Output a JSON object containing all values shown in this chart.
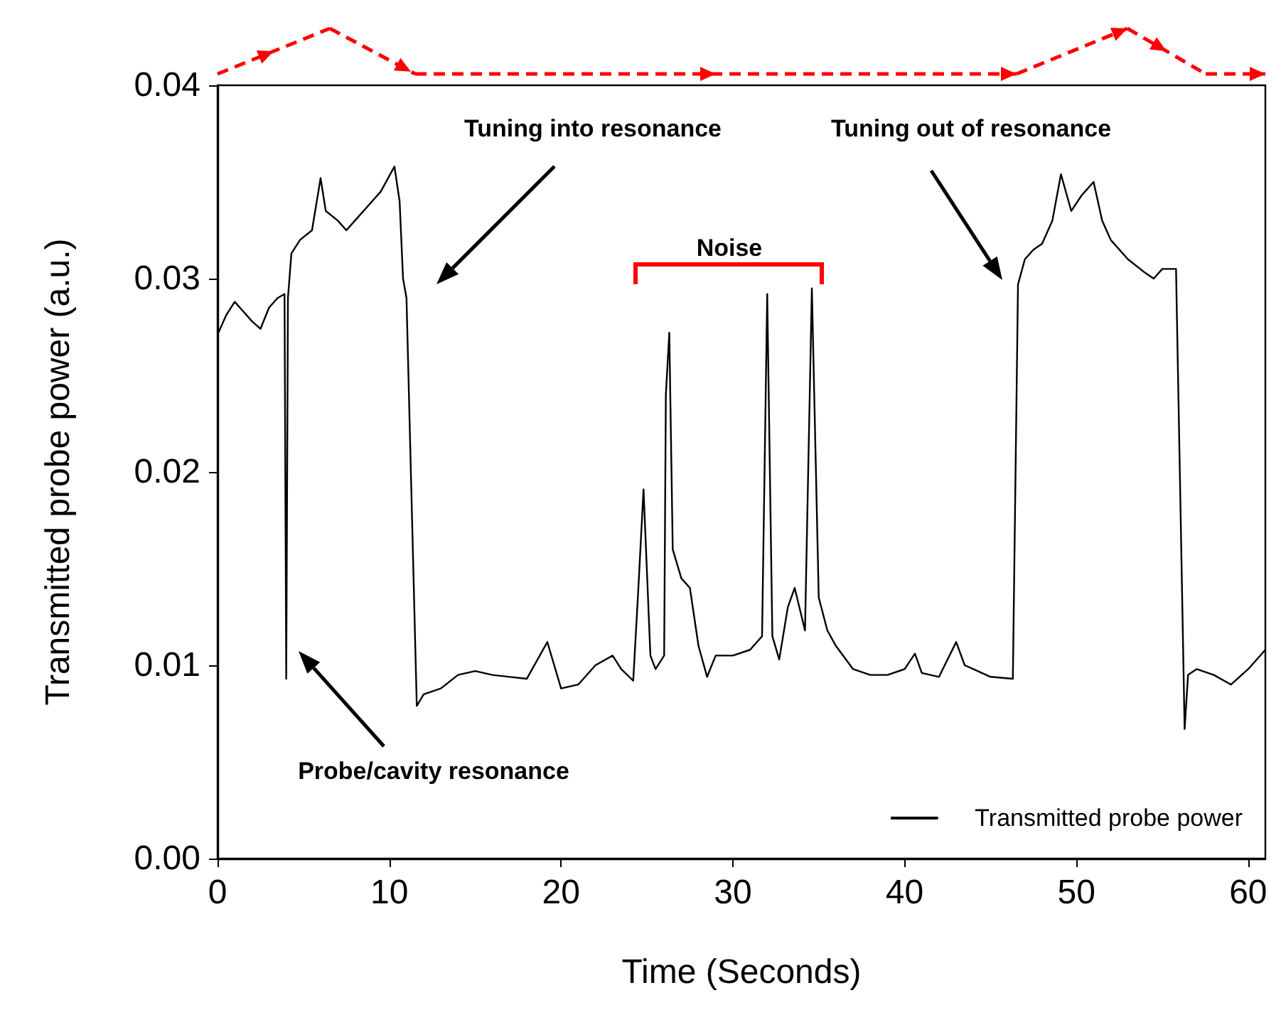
{
  "chart_data": {
    "type": "line",
    "xlabel": "Time (Seconds)",
    "ylabel": "Transmitted probe power (a.u.)",
    "xlim": [
      0,
      61
    ],
    "xticks": [
      0,
      10,
      20,
      30,
      40,
      50,
      60
    ],
    "ylim": [
      0,
      0.04
    ],
    "yticks": [
      {
        "value": 0,
        "label": "0.00"
      },
      {
        "value": 0.01,
        "label": "0.01"
      },
      {
        "value": 0.02,
        "label": "0.02"
      },
      {
        "value": 0.03,
        "label": "0.03"
      },
      {
        "value": 0.04,
        "label": "0.04"
      }
    ],
    "grid": false,
    "legend": "bottom right",
    "marker": "none",
    "line_style": "solid",
    "x": [
      0,
      0.5,
      1,
      1.5,
      2,
      2.5,
      3,
      3.5,
      3.9,
      4.0,
      4.1,
      4.3,
      4.8,
      5.5,
      6.0,
      6.3,
      7,
      7.5,
      8,
      9,
      9.5,
      10.3,
      10.6,
      10.8,
      11.0,
      11.6,
      12,
      13,
      14,
      15,
      16,
      17,
      18,
      19.2,
      20,
      21,
      22,
      23,
      23.5,
      24.2,
      24.5,
      24.8,
      25.2,
      25.5,
      26.0,
      26.1,
      26.3,
      26.5,
      27,
      27.5,
      28.0,
      28.5,
      29.0,
      30,
      31,
      31.7,
      32.0,
      32.3,
      32.7,
      33.2,
      33.6,
      34.2,
      34.6,
      35.0,
      35.5,
      36,
      37,
      38,
      39,
      40,
      40.6,
      41,
      42,
      43,
      43.5,
      44,
      45,
      46.3,
      46.6,
      47,
      47.5,
      48,
      48.6,
      49.1,
      49.7,
      50.3,
      51.0,
      51.5,
      52,
      53,
      54,
      54.5,
      55,
      55.8,
      56.3,
      56.5,
      57,
      58,
      59,
      60,
      61
    ],
    "series": [
      {
        "name": "Transmitted probe power",
        "color": "#000000",
        "values": [
          0.0271,
          0.0281,
          0.0288,
          0.0283,
          0.0278,
          0.0274,
          0.0285,
          0.029,
          0.0292,
          0.0093,
          0.029,
          0.0313,
          0.032,
          0.0325,
          0.0352,
          0.0335,
          0.033,
          0.0325,
          0.033,
          0.034,
          0.0345,
          0.0358,
          0.034,
          0.03,
          0.029,
          0.0079,
          0.0085,
          0.0088,
          0.0095,
          0.0097,
          0.0095,
          0.0094,
          0.0093,
          0.0112,
          0.0088,
          0.009,
          0.01,
          0.0105,
          0.0098,
          0.0092,
          0.014,
          0.0191,
          0.0105,
          0.0098,
          0.0105,
          0.024,
          0.0272,
          0.016,
          0.0145,
          0.014,
          0.011,
          0.0094,
          0.0105,
          0.0105,
          0.0108,
          0.0115,
          0.0292,
          0.0115,
          0.0103,
          0.013,
          0.014,
          0.0118,
          0.0295,
          0.0135,
          0.0118,
          0.011,
          0.0098,
          0.0095,
          0.0095,
          0.0098,
          0.0106,
          0.0096,
          0.0094,
          0.0112,
          0.01,
          0.0098,
          0.0094,
          0.0093,
          0.0297,
          0.031,
          0.0315,
          0.0318,
          0.033,
          0.0354,
          0.0335,
          0.0343,
          0.035,
          0.033,
          0.032,
          0.031,
          0.0303,
          0.03,
          0.0305,
          0.0305,
          0.0067,
          0.0095,
          0.0098,
          0.0095,
          0.009,
          0.0098,
          0.0108
        ]
      }
    ],
    "annotations": [
      "Tuning into resonance",
      "Tuning out of resonance",
      "Probe/cavity resonance",
      "Noise"
    ]
  }
}
